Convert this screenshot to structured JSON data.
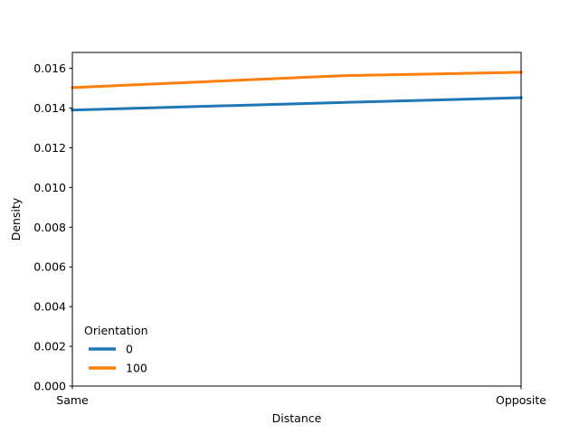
{
  "chart_data": {
    "type": "line",
    "xlabel": "Distance",
    "ylabel": "Density",
    "x_ticks": [
      "Same",
      "Opposite"
    ],
    "xlim": [
      0,
      1
    ],
    "ylim": [
      0,
      0.0168
    ],
    "y_ticks": [
      0.0,
      0.002,
      0.004,
      0.006,
      0.008,
      0.01,
      0.012,
      0.014,
      0.016
    ],
    "y_tick_labels": [
      "0.000",
      "0.002",
      "0.004",
      "0.006",
      "0.008",
      "0.010",
      "0.012",
      "0.014",
      "0.016"
    ],
    "grid": false,
    "legend": {
      "title": "Orientation",
      "placement": "lower-left"
    },
    "series": [
      {
        "name": "0",
        "color": "#1f77b4",
        "x": [
          0,
          0.6,
          1
        ],
        "y": [
          0.0139,
          0.01428,
          0.01452
        ]
      },
      {
        "name": "100",
        "color": "#ff7f0e",
        "x": [
          0,
          0.6,
          1
        ],
        "y": [
          0.01503,
          0.01563,
          0.0158
        ]
      }
    ]
  }
}
